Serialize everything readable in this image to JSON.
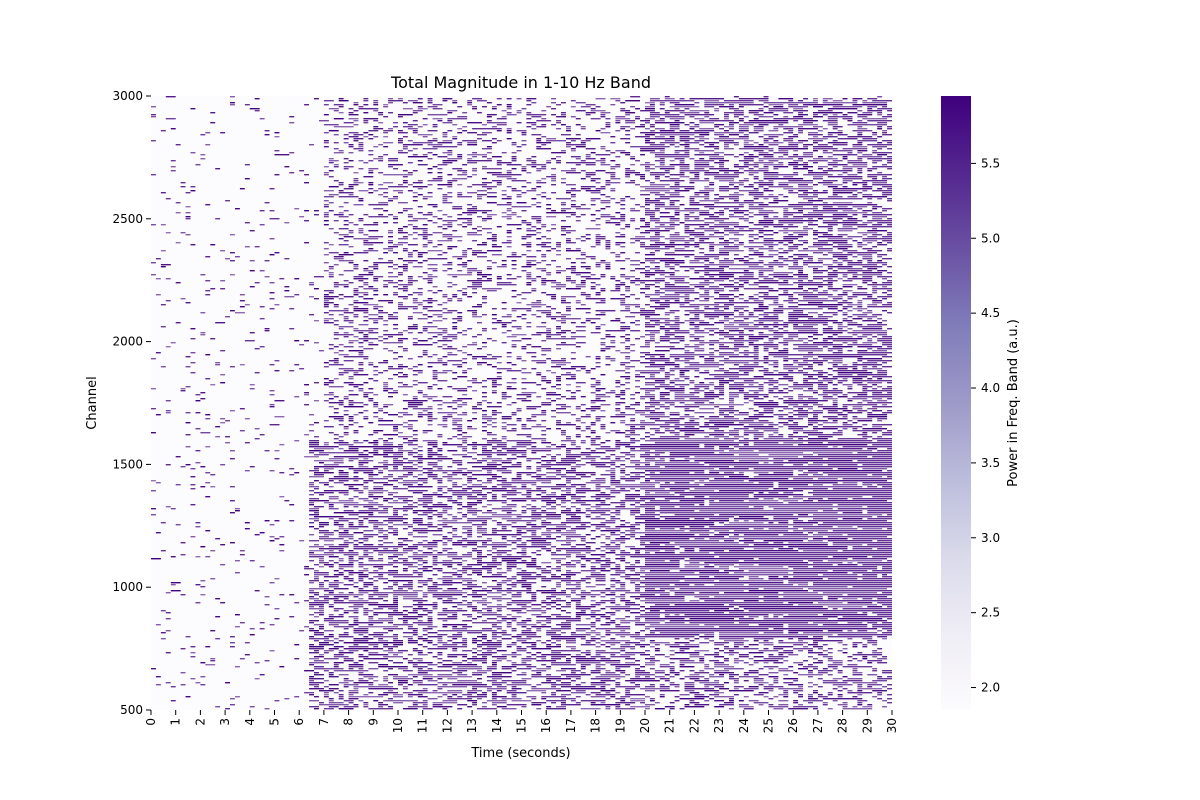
{
  "chart_data": {
    "type": "heatmap",
    "title": "Total Magnitude in 1-10 Hz Band",
    "xlabel": "Time (seconds)",
    "ylabel": "Channel",
    "colorbar_label": "Power in Freq. Band (a.u.)",
    "x_range": [
      0,
      30
    ],
    "y_range": [
      500,
      3000
    ],
    "x_ticks": [
      "0",
      "1",
      "2",
      "3",
      "4",
      "5",
      "6",
      "7",
      "8",
      "9",
      "10",
      "11",
      "12",
      "13",
      "14",
      "15",
      "16",
      "17",
      "18",
      "19",
      "20",
      "21",
      "22",
      "23",
      "24",
      "25",
      "26",
      "27",
      "28",
      "29",
      "30"
    ],
    "y_ticks": [
      500,
      1000,
      1500,
      2000,
      2500,
      3000
    ],
    "colorbar_range": [
      1.85,
      5.95
    ],
    "colorbar_ticks": [
      "2.0",
      "2.5",
      "3.0",
      "3.5",
      "4.0",
      "4.5",
      "5.0",
      "5.5"
    ],
    "colormap": [
      "#fcfbfd",
      "#efedf5",
      "#dadaeb",
      "#bcbddc",
      "#9e9ac8",
      "#807dba",
      "#6a51a3",
      "#54278f",
      "#3f007d"
    ],
    "regions": [
      {
        "t": [
          0,
          6.5
        ],
        "channels": [
          500,
          3000
        ],
        "level": 0.05
      },
      {
        "t": [
          6.5,
          20
        ],
        "channels": [
          500,
          1600
        ],
        "level": 0.55
      },
      {
        "t": [
          7,
          20
        ],
        "channels": [
          1600,
          3000
        ],
        "level": 0.3
      },
      {
        "t": [
          20,
          30
        ],
        "channels": [
          800,
          1600
        ],
        "level": 0.9
      },
      {
        "t": [
          20,
          30
        ],
        "channels": [
          1600,
          3000
        ],
        "level": 0.6
      },
      {
        "t": [
          20,
          30
        ],
        "channels": [
          500,
          800
        ],
        "level": 0.45
      }
    ]
  }
}
